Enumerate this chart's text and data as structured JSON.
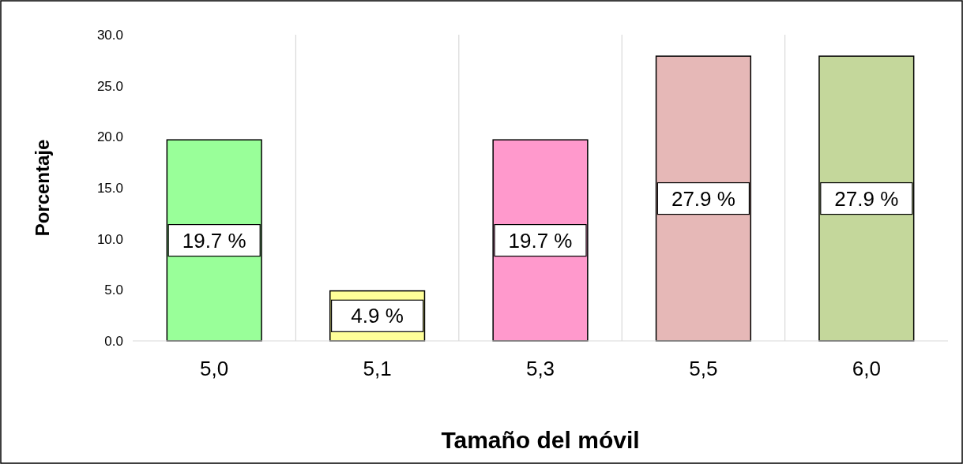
{
  "chart_data": {
    "type": "bar",
    "xlabel": "Tamaño del móvil",
    "ylabel": "Porcentaje",
    "categories": [
      "5,0",
      "5,1",
      "5,3",
      "5,5",
      "6,0"
    ],
    "values": [
      19.7,
      4.9,
      19.7,
      27.9,
      27.9
    ],
    "colors": [
      "#99ff99",
      "#ffff99",
      "#ff99cc",
      "#e6b8b7",
      "#c4d79b"
    ],
    "value_labels": [
      "19.7 %",
      "4.9 %",
      "19.7 %",
      "27.9 %",
      "27.9 %"
    ],
    "ylim": [
      0,
      30
    ],
    "yticks": [
      {
        "value": 0,
        "label": "0.0"
      },
      {
        "value": 5,
        "label": "5.0"
      },
      {
        "value": 10,
        "label": "10.0"
      },
      {
        "value": 15,
        "label": "15.0"
      },
      {
        "value": 20,
        "label": "20.0"
      },
      {
        "value": 25,
        "label": "25.0"
      },
      {
        "value": 30,
        "label": "30.0"
      }
    ],
    "grid": "x"
  }
}
